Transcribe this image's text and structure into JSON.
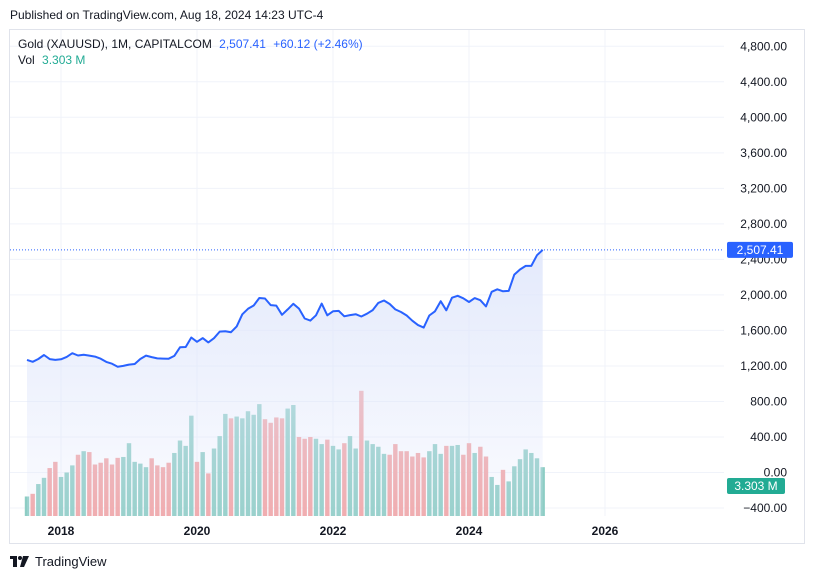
{
  "published": "Published on TradingView.com, Aug 18, 2024 14:23 UTC-4",
  "legend": {
    "symbol": "Gold (XAUUSD), 1M, CAPITALCOM",
    "price": "2,507.41",
    "change": "+60.12 (+2.46%)",
    "vol_label": "Vol",
    "vol_value": "3.303 M"
  },
  "footer": {
    "brand": "TradingView",
    "logo_icon": "tradingview-logo-icon"
  },
  "colors": {
    "line": "#2962ff",
    "area": "#dfe6fb",
    "up": "#8dcdc4",
    "down": "#f3a3a3",
    "last_price": "#2962ff",
    "vol_tag": "#22ab94"
  },
  "chart_data": {
    "type": "line",
    "title": "",
    "price_axis": {
      "ticks": [
        "4,800.00",
        "4,400.00",
        "4,000.00",
        "3,600.00",
        "3,200.00",
        "2,800.00",
        "2,400.00",
        "2,000.00",
        "1,600.00",
        "1,200.00",
        "800.00",
        "400.00",
        "0.00",
        "−400.00"
      ],
      "tick_values": [
        4800,
        4400,
        4000,
        3600,
        3200,
        2800,
        2400,
        2000,
        1600,
        1200,
        800,
        400,
        0,
        -400
      ],
      "last_price_label": "2,507.41",
      "last_price": 2507.41,
      "volume_label": "3.303 M"
    },
    "x_axis": {
      "ticks": [
        "2018",
        "2020",
        "2022",
        "2024",
        "2026"
      ],
      "tick_years": [
        2018,
        2020,
        2022,
        2024,
        2026
      ],
      "xlim": [
        2017.25,
        2027.75
      ]
    },
    "series": [
      {
        "name": "Gold (XAUUSD)",
        "start": 2017.5,
        "step_months": 1,
        "values": [
          1268,
          1247,
          1278,
          1323,
          1277,
          1268,
          1275,
          1302,
          1343,
          1318,
          1325,
          1316,
          1305,
          1282,
          1245,
          1225,
          1192,
          1200,
          1215,
          1222,
          1278,
          1316,
          1299,
          1285,
          1283,
          1281,
          1313,
          1410,
          1413,
          1520,
          1472,
          1514,
          1465,
          1512,
          1587,
          1590,
          1580,
          1645,
          1782,
          1843,
          1881,
          1965,
          1960,
          1885,
          1880,
          1776,
          1837,
          1900,
          1846,
          1734,
          1711,
          1770,
          1902,
          1770,
          1815,
          1820,
          1759,
          1772,
          1783,
          1757,
          1788,
          1829,
          1910,
          1937,
          1897,
          1837,
          1807,
          1768,
          1710,
          1660,
          1632,
          1768,
          1815,
          1929,
          1827,
          1969,
          1990,
          1962,
          1920,
          1964,
          1940,
          1871,
          2035,
          2063,
          2040,
          2045,
          2229,
          2286,
          2327,
          2327,
          2447,
          2507
        ]
      },
      {
        "name": "Vol",
        "values": [
          -270,
          -240,
          -130,
          -60,
          50,
          120,
          -50,
          0,
          80,
          200,
          240,
          230,
          90,
          110,
          160,
          90,
          165,
          175,
          330,
          120,
          100,
          60,
          160,
          80,
          60,
          110,
          220,
          360,
          300,
          640,
          120,
          230,
          -10,
          270,
          410,
          660,
          610,
          630,
          610,
          690,
          650,
          770,
          600,
          560,
          620,
          610,
          720,
          760,
          400,
          380,
          400,
          380,
          320,
          370,
          300,
          260,
          330,
          410,
          270,
          920,
          360,
          320,
          290,
          210,
          200,
          320,
          240,
          240,
          180,
          220,
          170,
          240,
          320,
          210,
          300,
          300,
          310,
          200,
          330,
          220,
          290,
          180,
          -50,
          -140,
          30,
          -100,
          70,
          150,
          260,
          220,
          160,
          60
        ]
      }
    ],
    "ylim": [
      -600,
      5000
    ],
    "grid": true
  }
}
